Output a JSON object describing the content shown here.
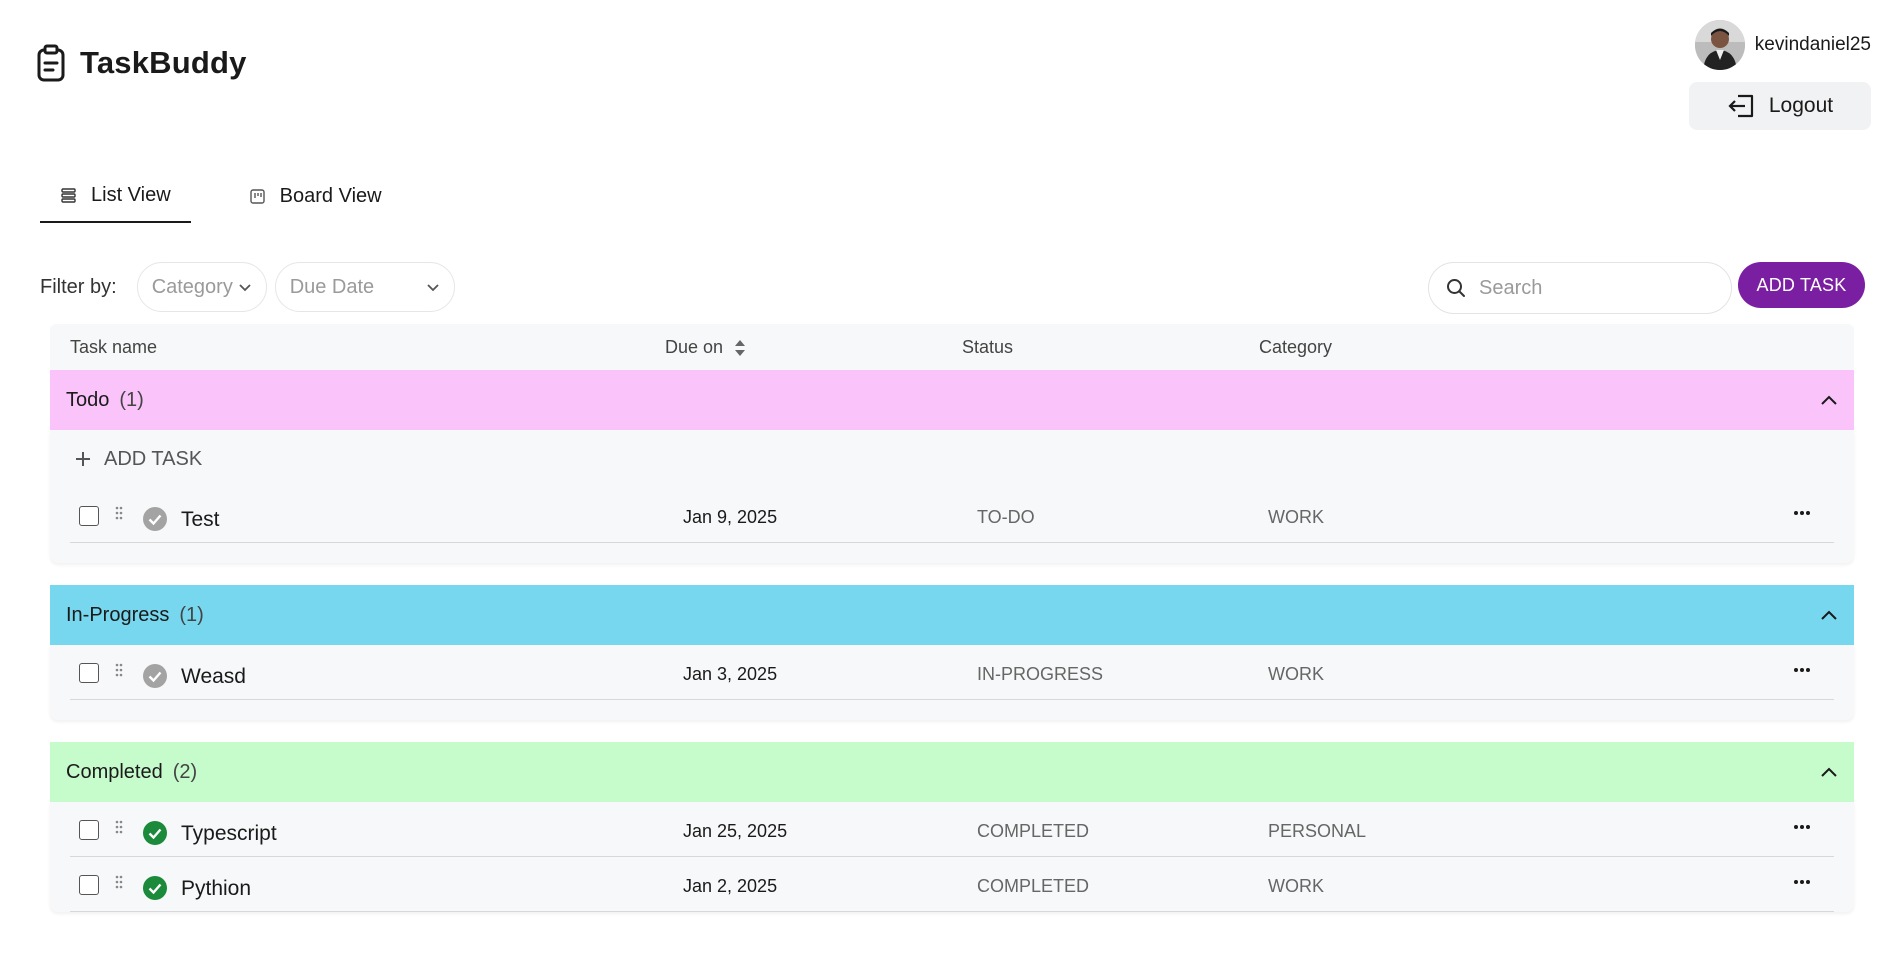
{
  "app": {
    "title": "TaskBuddy",
    "logo_icon": "clipboard-icon"
  },
  "user": {
    "username": "kevindaniel25",
    "logout_label": "Logout"
  },
  "tabs": [
    {
      "label": "List View",
      "icon": "list-icon",
      "active": true
    },
    {
      "label": "Board View",
      "icon": "board-icon",
      "active": false
    }
  ],
  "filters": {
    "label": "Filter by:",
    "category_placeholder": "Category",
    "due_date_placeholder": "Due Date"
  },
  "search": {
    "placeholder": "Search"
  },
  "add_task_label": "ADD TASK",
  "table": {
    "columns": {
      "task_name": "Task name",
      "due_on": "Due on",
      "status": "Status",
      "category": "Category"
    }
  },
  "groups": [
    {
      "title": "Todo",
      "count": "(1)",
      "color": "#fac3fa",
      "add_label": "ADD TASK",
      "tasks": [
        {
          "name": "Test",
          "due": "Jan 9, 2025",
          "status": "TO-DO",
          "category": "WORK",
          "completed": false
        }
      ]
    },
    {
      "title": "In-Progress",
      "count": "(1)",
      "color": "#77d7ef",
      "tasks": [
        {
          "name": "Weasd",
          "due": "Jan 3, 2025",
          "status": "IN-PROGRESS",
          "category": "WORK",
          "completed": false
        }
      ]
    },
    {
      "title": "Completed",
      "count": "(2)",
      "color": "#c6fbcc",
      "tasks": [
        {
          "name": "Typescript",
          "due": "Jan 25, 2025",
          "status": "COMPLETED",
          "category": "PERSONAL",
          "completed": true
        },
        {
          "name": "Pythion",
          "due": "Jan 2, 2025",
          "status": "COMPLETED",
          "category": "WORK",
          "completed": true
        }
      ]
    }
  ],
  "colors": {
    "accent": "#7b1fa2",
    "done_check": "#1b8a3a",
    "pending_check": "#a3a3a3"
  }
}
